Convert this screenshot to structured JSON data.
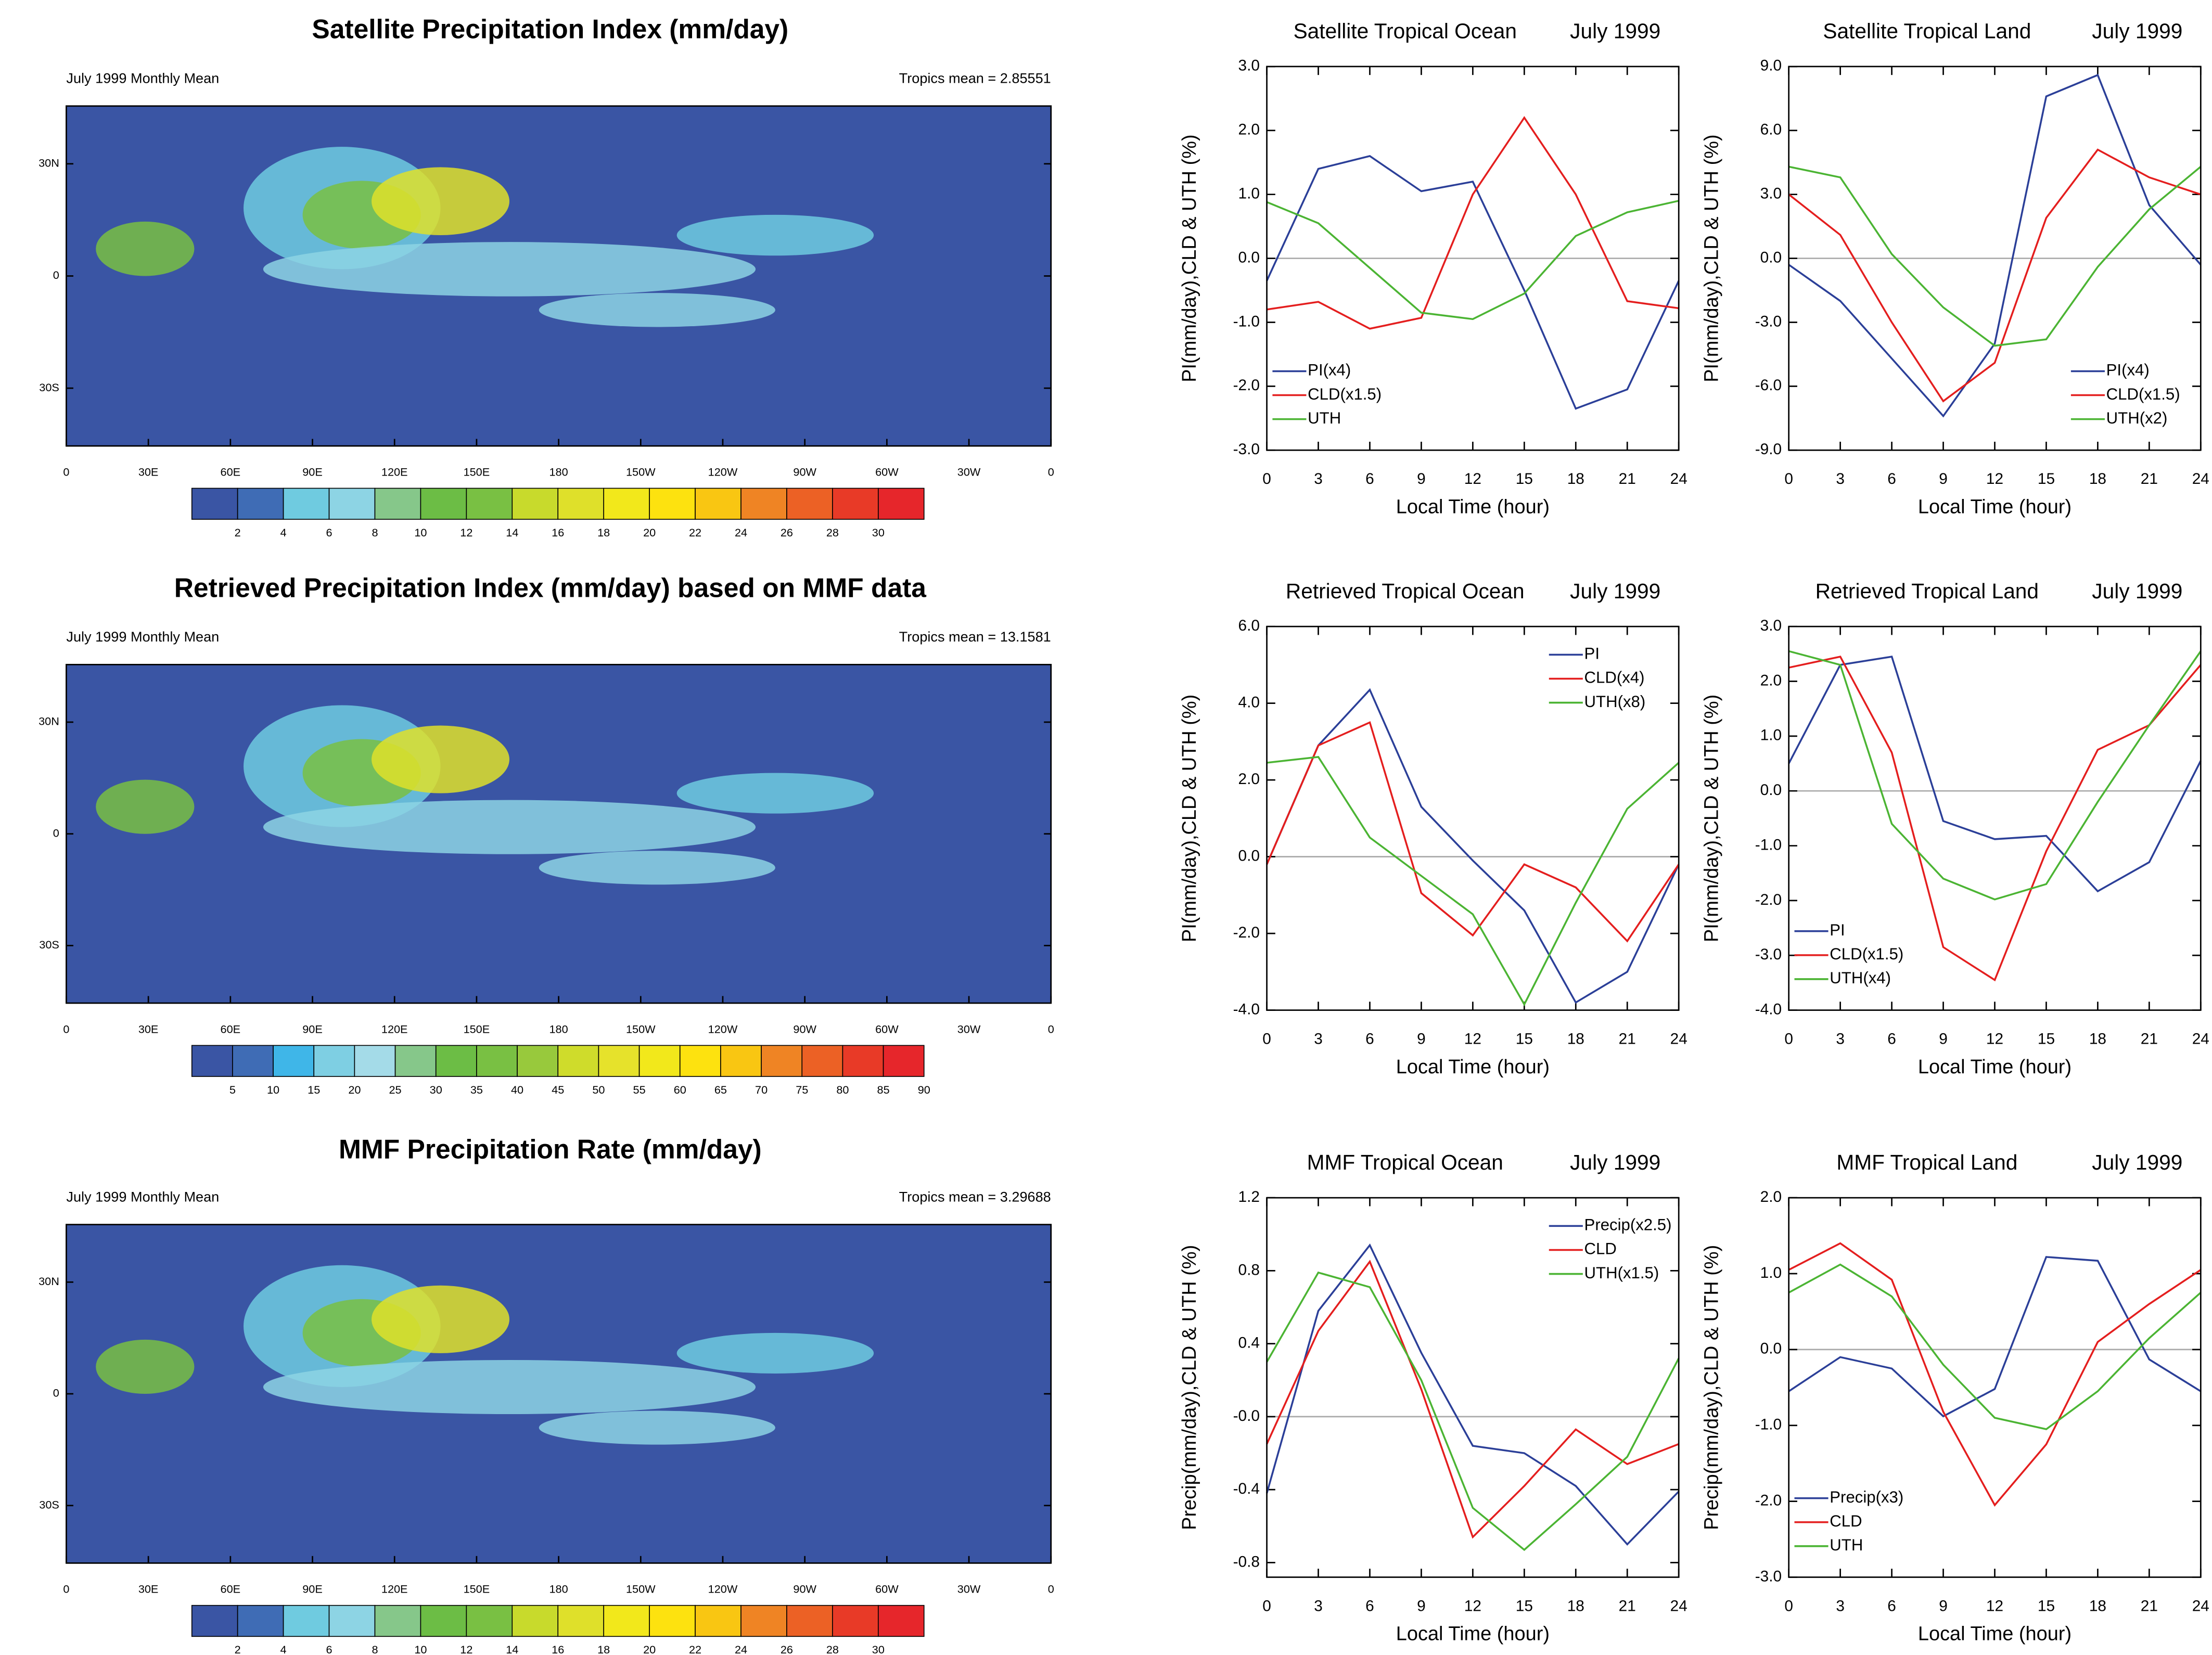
{
  "chart_data": [
    {
      "type": "contour-map",
      "title": "Satellite Precipitation Index (mm/day)",
      "left_note": "July 1999 Monthly Mean",
      "right_note": "Tropics mean = 2.85551",
      "lon_labels": [
        "0",
        "30E",
        "60E",
        "90E",
        "120E",
        "150E",
        "180",
        "150W",
        "120W",
        "90W",
        "60W",
        "30W",
        "0"
      ],
      "lat_labels": [
        "30N",
        "0",
        "30S"
      ],
      "colorbar": {
        "colors": [
          "#3a55a4",
          "#3f6cb5",
          "#6fcbe0",
          "#8dd4e4",
          "#86c78a",
          "#6cbd45",
          "#79c043",
          "#c8da2c",
          "#dfe02a",
          "#f2e81b",
          "#fde20f",
          "#f9c612",
          "#ef8424",
          "#ec6125",
          "#e83a27",
          "#e6262b"
        ],
        "ticks": [
          2,
          4,
          6,
          8,
          10,
          12,
          14,
          16,
          18,
          20,
          22,
          24,
          26,
          28,
          30
        ]
      }
    },
    {
      "type": "contour-map",
      "title": "Retrieved Precipitation Index (mm/day) based on MMF data",
      "left_note": "July 1999 Monthly Mean",
      "right_note": "Tropics mean = 13.1581",
      "lon_labels": [
        "0",
        "30E",
        "60E",
        "90E",
        "120E",
        "150E",
        "180",
        "150W",
        "120W",
        "90W",
        "60W",
        "30W",
        "0"
      ],
      "lat_labels": [
        "30N",
        "0",
        "30S"
      ],
      "colorbar": {
        "colors": [
          "#3a55a4",
          "#3f6cb5",
          "#3fb6e8",
          "#7ecfe3",
          "#a4dbe8",
          "#86c78a",
          "#6cbd45",
          "#79c043",
          "#98c93c",
          "#cfdc2b",
          "#e6e22b",
          "#f2e81b",
          "#fde20f",
          "#f9c612",
          "#ef8424",
          "#ec6125",
          "#e83a27",
          "#e6262b"
        ],
        "ticks": [
          5,
          10,
          15,
          20,
          25,
          30,
          35,
          40,
          45,
          50,
          55,
          60,
          65,
          70,
          75,
          80,
          85,
          90
        ]
      }
    },
    {
      "type": "contour-map",
      "title": "MMF Precipitation Rate (mm/day)",
      "left_note": "July 1999 Monthly Mean",
      "right_note": "Tropics mean = 3.29688",
      "lon_labels": [
        "0",
        "30E",
        "60E",
        "90E",
        "120E",
        "150E",
        "180",
        "150W",
        "120W",
        "90W",
        "60W",
        "30W",
        "0"
      ],
      "lat_labels": [
        "30N",
        "0",
        "30S"
      ],
      "colorbar": {
        "colors": [
          "#3a55a4",
          "#3f6cb5",
          "#6fcbe0",
          "#8dd4e4",
          "#86c78a",
          "#6cbd45",
          "#79c043",
          "#c8da2c",
          "#dfe02a",
          "#f2e81b",
          "#fde20f",
          "#f9c612",
          "#ef8424",
          "#ec6125",
          "#e83a27",
          "#e6262b"
        ],
        "ticks": [
          2,
          4,
          6,
          8,
          10,
          12,
          14,
          16,
          18,
          20,
          22,
          24,
          26,
          28,
          30
        ]
      }
    },
    {
      "type": "line",
      "title": "Satellite Tropical Ocean",
      "subtitle": "July 1999",
      "x_label": "Local Time (hour)",
      "y_label": "PI(mm/day),CLD & UTH (%)",
      "x": [
        0,
        3,
        6,
        9,
        12,
        15,
        18,
        21,
        24
      ],
      "xlim": [
        0,
        24
      ],
      "xticks": [
        0,
        3,
        6,
        9,
        12,
        15,
        18,
        21,
        24
      ],
      "ylim": [
        -3,
        3
      ],
      "yticks": [
        {
          "value": -3,
          "label": "-3.0"
        },
        {
          "value": -2,
          "label": "-2.0"
        },
        {
          "value": -1,
          "label": "-1.0"
        },
        {
          "value": 0,
          "label": "0.0"
        },
        {
          "value": 1,
          "label": "1.0"
        },
        {
          "value": 2,
          "label": "2.0"
        },
        {
          "value": 3,
          "label": "3.0"
        }
      ],
      "legend": "lower left",
      "series": [
        {
          "name": "PI(x4)",
          "color": "#2b3f98",
          "values": [
            -0.35,
            1.4,
            1.6,
            1.05,
            1.2,
            -0.5,
            -2.35,
            -2.05,
            -0.35
          ]
        },
        {
          "name": "CLD(x1.5)",
          "color": "#e41e1e",
          "values": [
            -0.8,
            -0.68,
            -1.1,
            -0.93,
            1.0,
            2.2,
            1.0,
            -0.67,
            -0.78
          ]
        },
        {
          "name": "UTH",
          "color": "#4bb433",
          "values": [
            0.88,
            0.55,
            -0.15,
            -0.85,
            -0.95,
            -0.55,
            0.35,
            0.72,
            0.9
          ]
        }
      ]
    },
    {
      "type": "line",
      "title": "Satellite Tropical Land",
      "subtitle": "July 1999",
      "x_label": "Local Time (hour)",
      "y_label": "PI(mm/day),CLD & UTH (%)",
      "x": [
        0,
        3,
        6,
        9,
        12,
        15,
        18,
        21,
        24
      ],
      "xlim": [
        0,
        24
      ],
      "xticks": [
        0,
        3,
        6,
        9,
        12,
        15,
        18,
        21,
        24
      ],
      "ylim": [
        -9,
        9
      ],
      "yticks": [
        {
          "value": -9,
          "label": "-9.0"
        },
        {
          "value": -6,
          "label": "-6.0"
        },
        {
          "value": -3,
          "label": "-3.0"
        },
        {
          "value": 0,
          "label": "0.0"
        },
        {
          "value": 3,
          "label": "3.0"
        },
        {
          "value": 6,
          "label": "6.0"
        },
        {
          "value": 9,
          "label": "9.0"
        }
      ],
      "legend": "lower right",
      "series": [
        {
          "name": "PI(x4)",
          "color": "#2b3f98",
          "values": [
            -0.3,
            -2.0,
            -4.7,
            -7.4,
            -4.0,
            7.6,
            8.6,
            2.5,
            -0.3
          ]
        },
        {
          "name": "CLD(x1.5)",
          "color": "#e41e1e",
          "values": [
            3.0,
            1.1,
            -3.0,
            -6.7,
            -4.9,
            1.9,
            5.1,
            3.8,
            3.0
          ]
        },
        {
          "name": "UTH(x2)",
          "color": "#4bb433",
          "values": [
            4.3,
            3.8,
            0.2,
            -2.3,
            -4.1,
            -3.8,
            -0.4,
            2.3,
            4.3
          ]
        }
      ]
    },
    {
      "type": "line",
      "title": "Retrieved Tropical Ocean",
      "subtitle": "July 1999",
      "x_label": "Local Time (hour)",
      "y_label": "PI(mm/day),CLD & UTH (%)",
      "x": [
        0,
        3,
        6,
        9,
        12,
        15,
        18,
        21,
        24
      ],
      "xlim": [
        0,
        24
      ],
      "xticks": [
        0,
        3,
        6,
        9,
        12,
        15,
        18,
        21,
        24
      ],
      "ylim": [
        -4,
        6
      ],
      "yticks": [
        {
          "value": -4,
          "label": "-4.0"
        },
        {
          "value": -2,
          "label": "-2.0"
        },
        {
          "value": 0,
          "label": "0.0"
        },
        {
          "value": 2,
          "label": "2.0"
        },
        {
          "value": 4,
          "label": "4.0"
        },
        {
          "value": 6,
          "label": "6.0"
        }
      ],
      "legend": "upper right",
      "series": [
        {
          "name": "PI",
          "color": "#2b3f98",
          "values": [
            -0.2,
            2.9,
            4.35,
            1.3,
            -0.1,
            -1.4,
            -3.8,
            -3.0,
            -0.2
          ]
        },
        {
          "name": "CLD(x4)",
          "color": "#e41e1e",
          "values": [
            -0.2,
            2.9,
            3.5,
            -0.95,
            -2.05,
            -0.2,
            -0.8,
            -2.2,
            -0.2
          ]
        },
        {
          "name": "UTH(x8)",
          "color": "#4bb433",
          "values": [
            2.45,
            2.6,
            0.5,
            -0.5,
            -1.5,
            -3.85,
            -1.2,
            1.25,
            2.45
          ]
        }
      ]
    },
    {
      "type": "line",
      "title": "Retrieved Tropical Land",
      "subtitle": "July 1999",
      "x_label": "Local Time (hour)",
      "y_label": "PI(mm/day),CLD & UTH (%)",
      "x": [
        0,
        3,
        6,
        9,
        12,
        15,
        18,
        21,
        24
      ],
      "xlim": [
        0,
        24
      ],
      "xticks": [
        0,
        3,
        6,
        9,
        12,
        15,
        18,
        21,
        24
      ],
      "ylim": [
        -4,
        3
      ],
      "yticks": [
        {
          "value": -4,
          "label": "-4.0"
        },
        {
          "value": -3,
          "label": "-3.0"
        },
        {
          "value": -2,
          "label": "-2.0"
        },
        {
          "value": -1,
          "label": "-1.0"
        },
        {
          "value": 0,
          "label": "0.0"
        },
        {
          "value": 1,
          "label": "1.0"
        },
        {
          "value": 2,
          "label": "2.0"
        },
        {
          "value": 3,
          "label": "3.0"
        }
      ],
      "legend": "lower left",
      "series": [
        {
          "name": "PI",
          "color": "#2b3f98",
          "values": [
            0.5,
            2.3,
            2.45,
            -0.55,
            -0.88,
            -0.82,
            -1.83,
            -1.3,
            0.55
          ]
        },
        {
          "name": "CLD(x1.5)",
          "color": "#e41e1e",
          "values": [
            2.25,
            2.45,
            0.7,
            -2.85,
            -3.45,
            -1.1,
            0.75,
            1.2,
            2.3
          ]
        },
        {
          "name": "UTH(x4)",
          "color": "#4bb433",
          "values": [
            2.55,
            2.3,
            -0.6,
            -1.6,
            -1.98,
            -1.7,
            -0.2,
            1.2,
            2.55
          ]
        }
      ]
    },
    {
      "type": "line",
      "title": "MMF Tropical Ocean",
      "subtitle": "July 1999",
      "x_label": "Local Time (hour)",
      "y_label": "Precip(mm/day),CLD & UTH (%)",
      "x": [
        0,
        3,
        6,
        9,
        12,
        15,
        18,
        21,
        24
      ],
      "xlim": [
        0,
        24
      ],
      "xticks": [
        0,
        3,
        6,
        9,
        12,
        15,
        18,
        21,
        24
      ],
      "ylim": [
        -0.88,
        1.2
      ],
      "yticks": [
        {
          "value": -0.8,
          "label": "-0.8"
        },
        {
          "value": -0.4,
          "label": "-0.4"
        },
        {
          "value": 0,
          "label": "-0.0"
        },
        {
          "value": 0.4,
          "label": "0.4"
        },
        {
          "value": 0.8,
          "label": "0.8"
        },
        {
          "value": 1.2,
          "label": "1.2"
        }
      ],
      "legend": "upper right",
      "series": [
        {
          "name": "Precip(x2.5)",
          "color": "#2b3f98",
          "values": [
            -0.42,
            0.58,
            0.94,
            0.35,
            -0.16,
            -0.2,
            -0.38,
            -0.7,
            -0.41
          ]
        },
        {
          "name": "CLD",
          "color": "#e41e1e",
          "values": [
            -0.15,
            0.47,
            0.85,
            0.15,
            -0.66,
            -0.38,
            -0.07,
            -0.26,
            -0.15
          ]
        },
        {
          "name": "UTH(x1.5)",
          "color": "#4bb433",
          "values": [
            0.3,
            0.79,
            0.71,
            0.2,
            -0.5,
            -0.73,
            -0.48,
            -0.22,
            0.32
          ]
        }
      ]
    },
    {
      "type": "line",
      "title": "MMF Tropical Land",
      "subtitle": "July 1999",
      "x_label": "Local Time (hour)",
      "y_label": "Precip(mm/day),CLD & UTH (%)",
      "x": [
        0,
        3,
        6,
        9,
        12,
        15,
        18,
        21,
        24
      ],
      "xlim": [
        0,
        24
      ],
      "xticks": [
        0,
        3,
        6,
        9,
        12,
        15,
        18,
        21,
        24
      ],
      "ylim": [
        -3,
        2
      ],
      "yticks": [
        {
          "value": -3,
          "label": "-3.0"
        },
        {
          "value": -2,
          "label": "-2.0"
        },
        {
          "value": -1,
          "label": "-1.0"
        },
        {
          "value": 0,
          "label": "0.0"
        },
        {
          "value": 1,
          "label": "1.0"
        },
        {
          "value": 2,
          "label": "2.0"
        }
      ],
      "legend": "lower left",
      "series": [
        {
          "name": "Precip(x3)",
          "color": "#2b3f98",
          "values": [
            -0.55,
            -0.1,
            -0.25,
            -0.88,
            -0.52,
            1.22,
            1.17,
            -0.13,
            -0.55
          ]
        },
        {
          "name": "CLD",
          "color": "#e41e1e",
          "values": [
            1.05,
            1.4,
            0.92,
            -0.82,
            -2.05,
            -1.25,
            0.1,
            0.6,
            1.05
          ]
        },
        {
          "name": "UTH",
          "color": "#4bb433",
          "values": [
            0.75,
            1.12,
            0.7,
            -0.2,
            -0.9,
            -1.05,
            -0.55,
            0.15,
            0.75
          ]
        }
      ]
    }
  ]
}
